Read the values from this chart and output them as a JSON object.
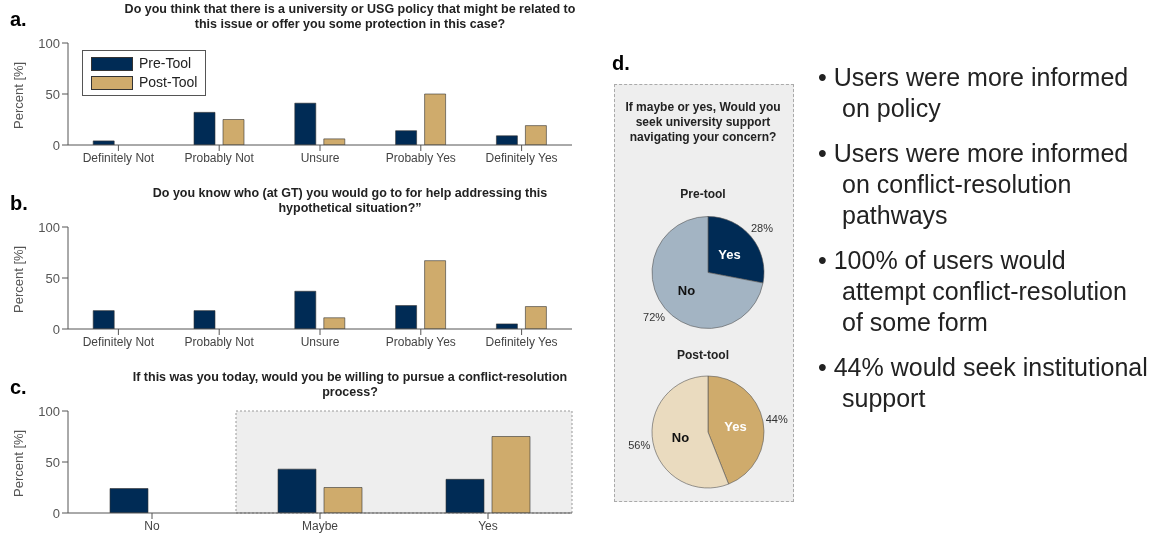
{
  "chart_data": [
    {
      "type": "bar",
      "title": "Do you think that there is a university or USG policy that might be related to this issue or offer you some protection in this case?",
      "ylabel": "Percent [%]",
      "annotations": [
        "a."
      ],
      "categories": [
        "Definitely Not",
        "Probably Not",
        "Unsure",
        "Probably Yes",
        "Definitely Yes"
      ],
      "series": [
        {
          "name": "Pre-Tool",
          "color": "#002b55",
          "values": [
            4,
            32,
            41,
            14,
            9
          ]
        },
        {
          "name": "Post-Tool",
          "color": "#cfab6c",
          "values": [
            0,
            25,
            6,
            50,
            19
          ]
        }
      ],
      "ylim": [
        0,
        100
      ],
      "yticks": [
        0,
        50,
        100
      ],
      "legend": "top left"
    },
    {
      "type": "bar",
      "title": "Do you know who (at GT) you would go to for help addressing this hypothetical situation?”",
      "ylabel": "Percent [%]",
      "annotations": [
        "b."
      ],
      "categories": [
        "Definitely Not",
        "Probably Not",
        "Unsure",
        "Probably Yes",
        "Definitely Yes"
      ],
      "series": [
        {
          "color": "#002b55",
          "values": [
            18,
            18,
            37,
            23,
            5
          ]
        },
        {
          "color": "#cfab6c",
          "values": [
            0,
            0,
            11,
            67,
            22
          ]
        }
      ],
      "ylim": [
        0,
        100
      ],
      "yticks": [
        0,
        50,
        100
      ]
    },
    {
      "type": "bar",
      "title": "If this was you today, would you be willing to pursue a conflict-resolution process?",
      "ylabel": "Percent [%]",
      "annotations": [
        "c."
      ],
      "categories": [
        "No",
        "Maybe",
        "Yes"
      ],
      "series": [
        {
          "color": "#002b55",
          "values": [
            24,
            43,
            33
          ]
        },
        {
          "color": "#cfab6c",
          "values": [
            0,
            25,
            75
          ]
        }
      ],
      "ylim": [
        0,
        100
      ],
      "yticks": [
        0,
        50,
        100
      ],
      "bands": [
        {
          "axis": "x",
          "from": "Maybe",
          "to": "Yes",
          "color": "#eeeeee"
        }
      ]
    },
    {
      "type": "pie",
      "title": "If maybe or yes, Would you seek university support navigating your concern?",
      "subtitle": "Pre-tool",
      "annotations": [
        "d."
      ],
      "categories": [
        "Yes",
        "No"
      ],
      "values": [
        28,
        72
      ],
      "colors": [
        "#002b55",
        "#a3b4c3"
      ],
      "value_labels": [
        "28%",
        "72%"
      ]
    },
    {
      "type": "pie",
      "title": "Post-tool",
      "categories": [
        "Yes",
        "No"
      ],
      "values": [
        44,
        56
      ],
      "colors": [
        "#cfab6c",
        "#eadbbf"
      ],
      "value_labels": [
        "44%",
        "56%"
      ]
    },
    {
      "type": "other",
      "annotations": [
        "• Users were more informed on policy",
        "• Users were more informed on conflict-resolution pathways",
        "• 100% of users would attempt conflict-resolution of some form",
        "• 44% would seek institutional support"
      ]
    }
  ]
}
